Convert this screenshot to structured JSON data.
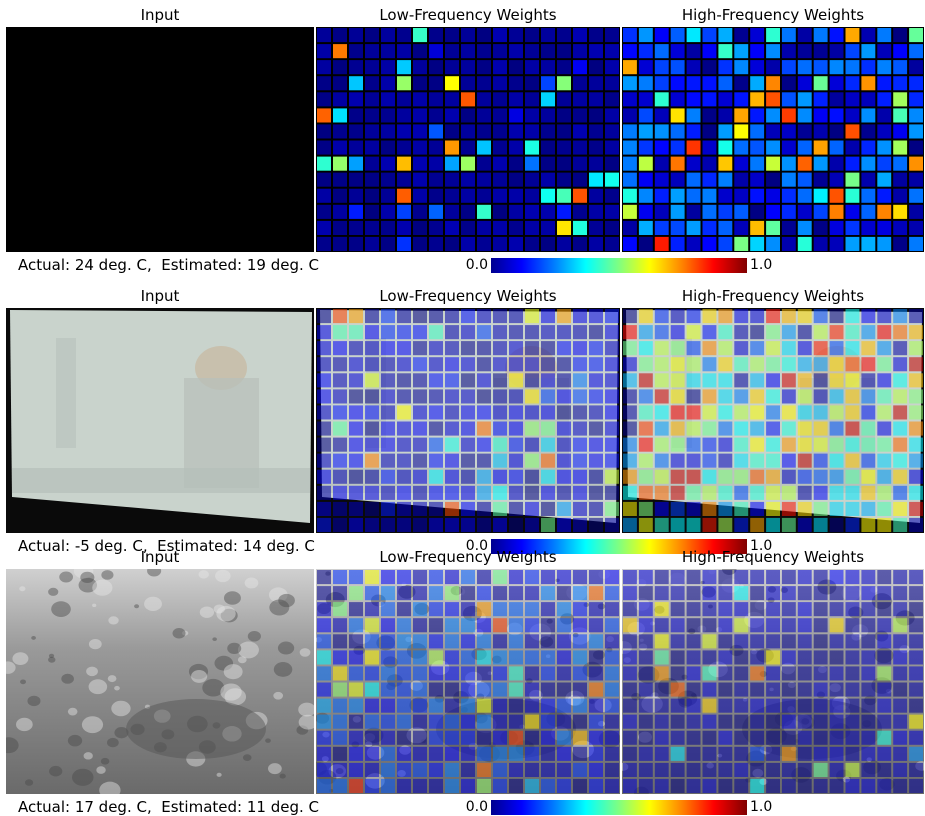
{
  "colors": {
    "colormap_low": "#00008f",
    "colormap_high": "#800000"
  },
  "rows": [
    {
      "titles": {
        "input": "Input",
        "low": "Low-Frequency Weights",
        "high": "High-Frequency Weights"
      },
      "caption": "Actual: 24 deg. C,  Estimated: 19 deg. C",
      "colorbar": {
        "min": "0.0",
        "max": "1.0"
      },
      "scene": "dark",
      "low_level": 0.05,
      "high_level": 0.3
    },
    {
      "titles": {
        "input": "Input",
        "low": "Low-Frequency Weights",
        "high": "High-Frequency Weights"
      },
      "caption": "Actual: -5 deg. C,  Estimated: 14 deg. C",
      "colorbar": {
        "min": "0.0",
        "max": "1.0"
      },
      "scene": "fog",
      "low_level": 0.15,
      "high_level": 0.7
    },
    {
      "titles": {
        "input": "Input",
        "low": "Low-Frequency Weights",
        "high": "High-Frequency Weights"
      },
      "caption": "Actual: 17 deg. C,  Estimated: 11 deg. C",
      "colorbar": {
        "min": "0.0",
        "max": "1.0"
      },
      "scene": "rain",
      "low_level": 0.25,
      "high_level": 0.1
    }
  ]
}
